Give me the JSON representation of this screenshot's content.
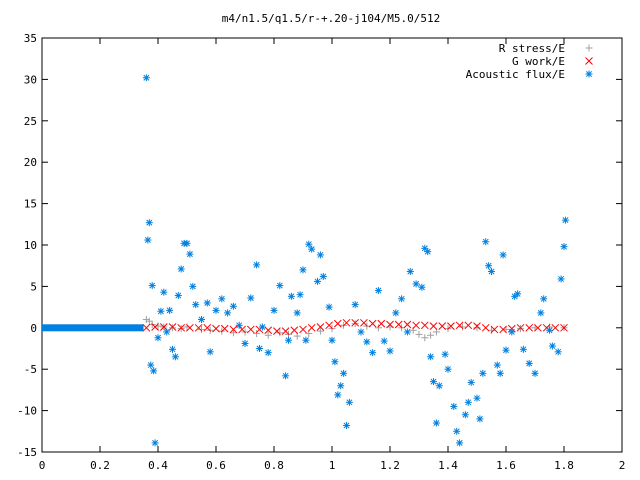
{
  "chart_data": {
    "type": "scatter",
    "title": "m4/n1.5/q1.5/r-+.20-j104/M5.0/512",
    "xlabel": "",
    "ylabel": "",
    "xlim": [
      0,
      2
    ],
    "ylim": [
      -15,
      35
    ],
    "x_ticks": [
      "0",
      "0.2",
      "0.4",
      "0.6",
      "0.8",
      "1",
      "1.2",
      "1.4",
      "1.6",
      "1.8",
      "2"
    ],
    "y_ticks": [
      "-15",
      "-10",
      "-5",
      "0",
      "5",
      "10",
      "15",
      "20",
      "25",
      "30",
      "35"
    ],
    "grid": false,
    "legend_position": "top-right",
    "series": [
      {
        "name": "R stress/E",
        "marker": "plus",
        "color": "#a0a0a0",
        "points": [
          [
            0.36,
            1.0
          ],
          [
            0.37,
            0.8
          ],
          [
            0.38,
            0.4
          ],
          [
            0.4,
            0.2
          ],
          [
            0.42,
            0.1
          ],
          [
            0.45,
            0.0
          ],
          [
            0.48,
            -0.1
          ],
          [
            0.5,
            0.1
          ],
          [
            0.55,
            -0.2
          ],
          [
            0.58,
            -0.3
          ],
          [
            0.62,
            -0.4
          ],
          [
            0.66,
            -0.6
          ],
          [
            0.7,
            -0.5
          ],
          [
            0.74,
            -0.7
          ],
          [
            0.78,
            -0.9
          ],
          [
            0.82,
            -0.6
          ],
          [
            0.85,
            -0.8
          ],
          [
            0.88,
            -1.0
          ],
          [
            0.92,
            -0.7
          ],
          [
            0.96,
            -0.4
          ],
          [
            1.0,
            -0.1
          ],
          [
            1.04,
            0.3
          ],
          [
            1.08,
            0.5
          ],
          [
            1.12,
            0.2
          ],
          [
            1.16,
            0.0
          ],
          [
            1.2,
            0.1
          ],
          [
            1.24,
            0.0
          ],
          [
            1.28,
            -0.3
          ],
          [
            1.3,
            -0.8
          ],
          [
            1.32,
            -1.2
          ],
          [
            1.34,
            -0.9
          ],
          [
            1.36,
            -0.5
          ],
          [
            1.4,
            -0.1
          ],
          [
            1.45,
            0.1
          ],
          [
            1.5,
            0.0
          ],
          [
            1.55,
            -0.3
          ],
          [
            1.6,
            -0.2
          ],
          [
            1.65,
            -0.1
          ],
          [
            1.7,
            0.0
          ],
          [
            1.75,
            0.1
          ],
          [
            1.8,
            0.0
          ]
        ]
      },
      {
        "name": "G work/E",
        "marker": "cross",
        "color": "#ff0000",
        "points": [
          [
            0.36,
            0.0
          ],
          [
            0.39,
            0.1
          ],
          [
            0.42,
            0.1
          ],
          [
            0.45,
            0.1
          ],
          [
            0.48,
            0.0
          ],
          [
            0.51,
            0.0
          ],
          [
            0.54,
            0.0
          ],
          [
            0.57,
            0.0
          ],
          [
            0.6,
            -0.1
          ],
          [
            0.63,
            -0.1
          ],
          [
            0.66,
            -0.2
          ],
          [
            0.69,
            -0.2
          ],
          [
            0.72,
            -0.2
          ],
          [
            0.75,
            -0.2
          ],
          [
            0.78,
            -0.3
          ],
          [
            0.81,
            -0.4
          ],
          [
            0.84,
            -0.4
          ],
          [
            0.87,
            -0.3
          ],
          [
            0.9,
            -0.2
          ],
          [
            0.93,
            0.0
          ],
          [
            0.96,
            0.1
          ],
          [
            0.99,
            0.3
          ],
          [
            1.02,
            0.5
          ],
          [
            1.05,
            0.6
          ],
          [
            1.08,
            0.6
          ],
          [
            1.11,
            0.6
          ],
          [
            1.14,
            0.5
          ],
          [
            1.17,
            0.5
          ],
          [
            1.2,
            0.4
          ],
          [
            1.23,
            0.4
          ],
          [
            1.26,
            0.4
          ],
          [
            1.29,
            0.3
          ],
          [
            1.32,
            0.3
          ],
          [
            1.35,
            0.2
          ],
          [
            1.38,
            0.2
          ],
          [
            1.41,
            0.2
          ],
          [
            1.44,
            0.3
          ],
          [
            1.47,
            0.3
          ],
          [
            1.5,
            0.2
          ],
          [
            1.53,
            0.0
          ],
          [
            1.56,
            -0.2
          ],
          [
            1.59,
            -0.2
          ],
          [
            1.62,
            -0.1
          ],
          [
            1.65,
            0.0
          ],
          [
            1.68,
            0.0
          ],
          [
            1.71,
            0.0
          ],
          [
            1.74,
            0.0
          ],
          [
            1.77,
            0.0
          ],
          [
            1.8,
            0.0
          ]
        ]
      },
      {
        "name": "Acoustic flux/E",
        "marker": "star",
        "color": "#0080e0",
        "baseline": {
          "x_from": 0.0,
          "x_to": 0.35,
          "y": 0.0
        },
        "points": [
          [
            0.36,
            30.2
          ],
          [
            0.37,
            12.7
          ],
          [
            0.365,
            10.6
          ],
          [
            0.38,
            5.1
          ],
          [
            0.375,
            -4.5
          ],
          [
            0.385,
            -5.2
          ],
          [
            0.39,
            -13.9
          ],
          [
            0.4,
            -1.2
          ],
          [
            0.41,
            2.0
          ],
          [
            0.42,
            4.3
          ],
          [
            0.43,
            -0.5
          ],
          [
            0.44,
            2.1
          ],
          [
            0.45,
            -2.6
          ],
          [
            0.46,
            -3.5
          ],
          [
            0.47,
            3.9
          ],
          [
            0.48,
            7.1
          ],
          [
            0.49,
            10.2
          ],
          [
            0.5,
            10.2
          ],
          [
            0.51,
            8.9
          ],
          [
            0.52,
            5.0
          ],
          [
            0.53,
            2.8
          ],
          [
            0.55,
            1.0
          ],
          [
            0.57,
            3.0
          ],
          [
            0.58,
            -2.9
          ],
          [
            0.6,
            2.1
          ],
          [
            0.62,
            3.5
          ],
          [
            0.64,
            1.8
          ],
          [
            0.66,
            2.6
          ],
          [
            0.68,
            0.3
          ],
          [
            0.7,
            -1.9
          ],
          [
            0.72,
            3.6
          ],
          [
            0.74,
            7.6
          ],
          [
            0.75,
            -2.5
          ],
          [
            0.76,
            0.1
          ],
          [
            0.78,
            -3.0
          ],
          [
            0.8,
            2.1
          ],
          [
            0.82,
            5.1
          ],
          [
            0.84,
            -5.8
          ],
          [
            0.85,
            -1.5
          ],
          [
            0.86,
            3.8
          ],
          [
            0.88,
            1.8
          ],
          [
            0.89,
            4.0
          ],
          [
            0.9,
            7.0
          ],
          [
            0.91,
            -1.5
          ],
          [
            0.92,
            10.1
          ],
          [
            0.93,
            9.5
          ],
          [
            0.95,
            5.6
          ],
          [
            0.96,
            8.8
          ],
          [
            0.97,
            6.2
          ],
          [
            0.99,
            2.5
          ],
          [
            1.0,
            -1.5
          ],
          [
            1.01,
            -4.1
          ],
          [
            1.02,
            -8.1
          ],
          [
            1.03,
            -7.0
          ],
          [
            1.04,
            -5.5
          ],
          [
            1.05,
            -11.8
          ],
          [
            1.06,
            -9.0
          ],
          [
            1.08,
            2.8
          ],
          [
            1.1,
            -0.5
          ],
          [
            1.12,
            -1.7
          ],
          [
            1.14,
            -3.0
          ],
          [
            1.16,
            4.5
          ],
          [
            1.18,
            -1.6
          ],
          [
            1.2,
            -2.8
          ],
          [
            1.22,
            1.8
          ],
          [
            1.24,
            3.5
          ],
          [
            1.26,
            -0.5
          ],
          [
            1.27,
            6.8
          ],
          [
            1.29,
            5.3
          ],
          [
            1.31,
            4.9
          ],
          [
            1.32,
            9.6
          ],
          [
            1.33,
            9.2
          ],
          [
            1.34,
            -3.5
          ],
          [
            1.35,
            -6.5
          ],
          [
            1.36,
            -11.5
          ],
          [
            1.37,
            -7.0
          ],
          [
            1.39,
            -3.2
          ],
          [
            1.4,
            -5.0
          ],
          [
            1.42,
            -9.5
          ],
          [
            1.43,
            -12.5
          ],
          [
            1.44,
            -13.9
          ],
          [
            1.46,
            -10.5
          ],
          [
            1.47,
            -9.0
          ],
          [
            1.48,
            -6.6
          ],
          [
            1.5,
            -8.5
          ],
          [
            1.51,
            -11.0
          ],
          [
            1.52,
            -5.5
          ],
          [
            1.53,
            10.4
          ],
          [
            1.54,
            7.5
          ],
          [
            1.55,
            6.8
          ],
          [
            1.57,
            -4.5
          ],
          [
            1.58,
            -5.5
          ],
          [
            1.59,
            8.8
          ],
          [
            1.6,
            -2.7
          ],
          [
            1.62,
            -0.5
          ],
          [
            1.63,
            3.8
          ],
          [
            1.64,
            4.1
          ],
          [
            1.66,
            -2.6
          ],
          [
            1.68,
            -4.3
          ],
          [
            1.7,
            -5.5
          ],
          [
            1.72,
            1.8
          ],
          [
            1.73,
            3.5
          ],
          [
            1.75,
            -0.3
          ],
          [
            1.76,
            -2.2
          ],
          [
            1.78,
            -2.9
          ],
          [
            1.79,
            5.9
          ],
          [
            1.8,
            9.8
          ],
          [
            1.805,
            13.0
          ]
        ]
      }
    ]
  }
}
